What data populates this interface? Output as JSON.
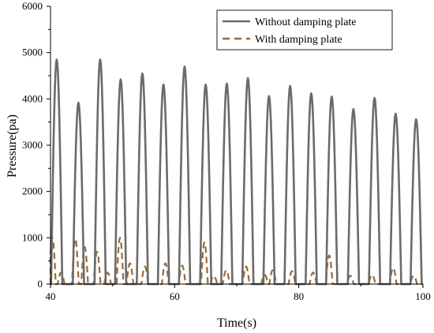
{
  "chart_data": {
    "type": "line",
    "title": "",
    "xlabel": "Time(s)",
    "ylabel": "Pressure(pa)",
    "xlim": [
      40,
      100
    ],
    "ylim": [
      0,
      6000
    ],
    "xticks": [
      40,
      60,
      80,
      100
    ],
    "yticks": [
      0,
      1000,
      2000,
      3000,
      4000,
      5000,
      6000
    ],
    "grid": false,
    "legend_position": "top-right",
    "series": [
      {
        "name": "Without damping plate",
        "color": "#6b6b6b",
        "style": "solid",
        "pulse_half_width": 0.9,
        "peaks": [
          {
            "x": 41.0,
            "y": 4850
          },
          {
            "x": 44.5,
            "y": 3920
          },
          {
            "x": 48.0,
            "y": 4850
          },
          {
            "x": 51.3,
            "y": 4420
          },
          {
            "x": 54.8,
            "y": 4550
          },
          {
            "x": 58.2,
            "y": 4310
          },
          {
            "x": 61.6,
            "y": 4700
          },
          {
            "x": 65.0,
            "y": 4310
          },
          {
            "x": 68.4,
            "y": 4330
          },
          {
            "x": 71.8,
            "y": 4450
          },
          {
            "x": 75.2,
            "y": 4060
          },
          {
            "x": 78.6,
            "y": 4280
          },
          {
            "x": 82.0,
            "y": 4120
          },
          {
            "x": 85.3,
            "y": 4050
          },
          {
            "x": 88.8,
            "y": 3780
          },
          {
            "x": 92.2,
            "y": 4020
          },
          {
            "x": 95.6,
            "y": 3680
          },
          {
            "x": 98.9,
            "y": 3560
          }
        ]
      },
      {
        "name": "With damping plate",
        "color": "#9a6a3a",
        "style": "dashed",
        "pulse_half_width": 0.55,
        "peaks": [
          {
            "x": 40.3,
            "y": 1000
          },
          {
            "x": 41.7,
            "y": 250
          },
          {
            "x": 44.0,
            "y": 980
          },
          {
            "x": 45.5,
            "y": 800
          },
          {
            "x": 47.5,
            "y": 700
          },
          {
            "x": 49.2,
            "y": 250
          },
          {
            "x": 51.2,
            "y": 1000
          },
          {
            "x": 52.8,
            "y": 450
          },
          {
            "x": 55.2,
            "y": 380
          },
          {
            "x": 58.5,
            "y": 450
          },
          {
            "x": 61.2,
            "y": 400
          },
          {
            "x": 64.8,
            "y": 900
          },
          {
            "x": 66.3,
            "y": 180
          },
          {
            "x": 68.3,
            "y": 300
          },
          {
            "x": 71.5,
            "y": 380
          },
          {
            "x": 74.5,
            "y": 200
          },
          {
            "x": 75.8,
            "y": 300
          },
          {
            "x": 78.9,
            "y": 280
          },
          {
            "x": 82.3,
            "y": 250
          },
          {
            "x": 84.9,
            "y": 620
          },
          {
            "x": 88.3,
            "y": 180
          },
          {
            "x": 91.8,
            "y": 200
          },
          {
            "x": 95.2,
            "y": 350
          },
          {
            "x": 98.5,
            "y": 180
          }
        ]
      }
    ]
  }
}
